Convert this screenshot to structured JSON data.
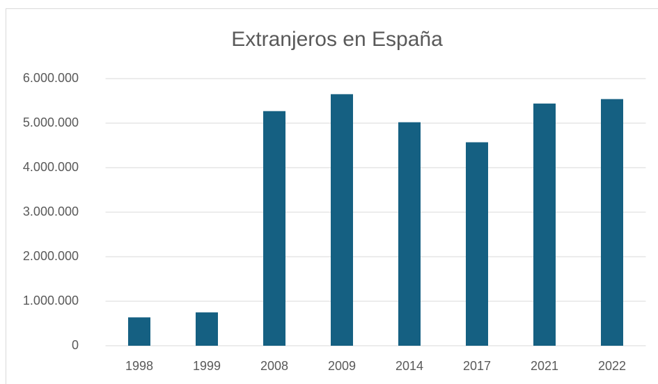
{
  "chart_data": {
    "type": "bar",
    "title": "Extranjeros en España",
    "categories": [
      "1998",
      "1999",
      "2008",
      "2009",
      "2014",
      "2017",
      "2021",
      "2022"
    ],
    "values": [
      637000,
      749000,
      5270000,
      5650000,
      5020000,
      4570000,
      5440000,
      5540000
    ],
    "color": "#156082",
    "ylim": [
      0,
      6000000
    ],
    "yticks": [
      0,
      {
        "value": 1000000,
        "label": "1.000.000"
      },
      {
        "value": 2000000,
        "label": "2.000.000"
      },
      {
        "value": 3000000,
        "label": "3.000.000"
      },
      {
        "value": 4000000,
        "label": "4.000.000"
      },
      {
        "value": 5000000,
        "label": "5.000.000"
      },
      {
        "value": 6000000,
        "label": "6.000.000"
      }
    ],
    "grid": true
  }
}
